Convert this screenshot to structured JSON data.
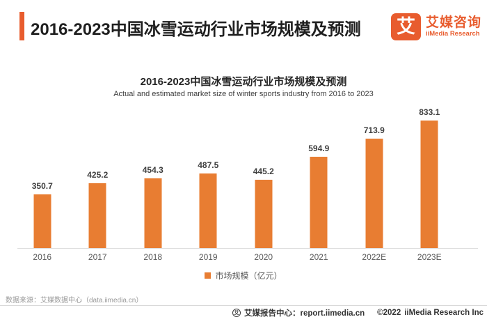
{
  "header": {
    "title": "2016-2023中国冰雪运动行业市场规模及预测",
    "logo": {
      "glyph": "艾",
      "name_cn": "艾媒咨询",
      "name_en": "iiMedia Research"
    }
  },
  "chart_data": {
    "type": "bar",
    "title": "2016-2023中国冰雪运动行业市场规模及预测",
    "subtitle": "Actual and estimated market size of winter sports industry from 2016 to 2023",
    "categories": [
      "2016",
      "2017",
      "2018",
      "2019",
      "2020",
      "2021",
      "2022E",
      "2023E"
    ],
    "values": [
      350.7,
      425.2,
      454.3,
      487.5,
      445.2,
      594.9,
      713.9,
      833.1
    ],
    "legend": "市场规模（亿元）",
    "unit": "亿元",
    "bar_color": "#e87d32",
    "ylim": [
      0,
      833.1
    ],
    "grid": false,
    "value_labels_shown": true,
    "legend_position": "bottom"
  },
  "footer": {
    "source": "数据来源：艾媒数据中心（data.iimedia.cn）",
    "report_center": "艾媒报告中心：report.iimedia.cn",
    "copyright": "©2022",
    "company": "iiMedia Research Inc"
  },
  "colors": {
    "brand_orange": "#e85c2e",
    "bar_orange": "#e87d32",
    "title_text": "#1f1f1f",
    "axis_text": "#595959",
    "line_gray": "#dcdcdc"
  }
}
